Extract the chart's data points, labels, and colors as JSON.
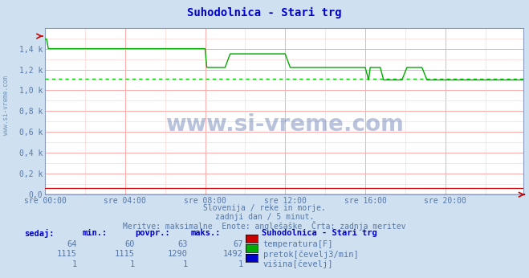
{
  "title": "Suhodolnica - Stari trg",
  "title_color": "#0000cc",
  "bg_color": "#cfe0f0",
  "plot_bg_color": "#ffffff",
  "grid_color_major": "#ffaaaa",
  "grid_color_minor": "#ffcccc",
  "tick_color": "#5577aa",
  "subtitle1": "Slovenija / reke in morje.",
  "subtitle2": "zadnji dan / 5 minut.",
  "subtitle3": "Meritve: maksimalne  Enote: anglešaške  Črta: zadnja meritev",
  "xtick_labels": [
    "sre 00:00",
    "sre 04:00",
    "sre 08:00",
    "sre 12:00",
    "sre 16:00",
    "sre 20:00"
  ],
  "xtick_positions": [
    0,
    48,
    96,
    144,
    192,
    240
  ],
  "ytick_labels": [
    "0,0",
    "0,2 k",
    "0,4 k",
    "0,6 k",
    "0,8 k",
    "1,0 k",
    "1,2 k",
    "1,4 k"
  ],
  "ytick_positions": [
    0,
    200,
    400,
    600,
    800,
    1000,
    1200,
    1400
  ],
  "ymax": 1600,
  "ymin": 0,
  "n_points": 288,
  "temp_color": "#cc0000",
  "flow_color": "#00aa00",
  "height_color": "#0000cc",
  "avg_color": "#00cc00",
  "temp_sedaj": 64,
  "temp_min": 60,
  "temp_povpr": 63,
  "temp_maks": 67,
  "flow_sedaj": 1115,
  "flow_min": 1115,
  "flow_povpr": 1290,
  "flow_maks": 1492,
  "flow_avg_line": 1115,
  "height_sedaj": 1,
  "height_min": 1,
  "height_povpr": 1,
  "height_maks": 1,
  "legend_title": "Suhodolnica - Stari trg",
  "legend_items": [
    "temperatura[F]",
    "pretok[čevelj3/min]",
    "višina[čevelj]"
  ],
  "table_headers": [
    "sedaj:",
    "min.:",
    "povpr.:",
    "maks.:"
  ],
  "watermark": "www.si-vreme.com",
  "watermark_color": "#1a3a8a",
  "side_text": "www.si-vreme.com"
}
